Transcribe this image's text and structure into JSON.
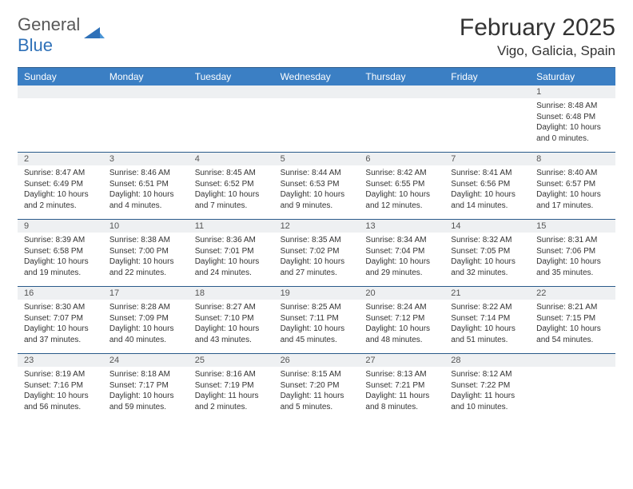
{
  "logo": {
    "word1": "General",
    "word2": "Blue"
  },
  "title": "February 2025",
  "location": "Vigo, Galicia, Spain",
  "colors": {
    "header_bg": "#3b7fc4",
    "header_text": "#ffffff",
    "daynum_bg": "#eef0f2",
    "border": "#2a5a8a",
    "logo_gray": "#585858",
    "logo_blue": "#2f71b8"
  },
  "day_names": [
    "Sunday",
    "Monday",
    "Tuesday",
    "Wednesday",
    "Thursday",
    "Friday",
    "Saturday"
  ],
  "weeks": [
    {
      "nums": [
        "",
        "",
        "",
        "",
        "",
        "",
        "1"
      ],
      "details": [
        "",
        "",
        "",
        "",
        "",
        "",
        "Sunrise: 8:48 AM\nSunset: 6:48 PM\nDaylight: 10 hours and 0 minutes."
      ]
    },
    {
      "nums": [
        "2",
        "3",
        "4",
        "5",
        "6",
        "7",
        "8"
      ],
      "details": [
        "Sunrise: 8:47 AM\nSunset: 6:49 PM\nDaylight: 10 hours and 2 minutes.",
        "Sunrise: 8:46 AM\nSunset: 6:51 PM\nDaylight: 10 hours and 4 minutes.",
        "Sunrise: 8:45 AM\nSunset: 6:52 PM\nDaylight: 10 hours and 7 minutes.",
        "Sunrise: 8:44 AM\nSunset: 6:53 PM\nDaylight: 10 hours and 9 minutes.",
        "Sunrise: 8:42 AM\nSunset: 6:55 PM\nDaylight: 10 hours and 12 minutes.",
        "Sunrise: 8:41 AM\nSunset: 6:56 PM\nDaylight: 10 hours and 14 minutes.",
        "Sunrise: 8:40 AM\nSunset: 6:57 PM\nDaylight: 10 hours and 17 minutes."
      ]
    },
    {
      "nums": [
        "9",
        "10",
        "11",
        "12",
        "13",
        "14",
        "15"
      ],
      "details": [
        "Sunrise: 8:39 AM\nSunset: 6:58 PM\nDaylight: 10 hours and 19 minutes.",
        "Sunrise: 8:38 AM\nSunset: 7:00 PM\nDaylight: 10 hours and 22 minutes.",
        "Sunrise: 8:36 AM\nSunset: 7:01 PM\nDaylight: 10 hours and 24 minutes.",
        "Sunrise: 8:35 AM\nSunset: 7:02 PM\nDaylight: 10 hours and 27 minutes.",
        "Sunrise: 8:34 AM\nSunset: 7:04 PM\nDaylight: 10 hours and 29 minutes.",
        "Sunrise: 8:32 AM\nSunset: 7:05 PM\nDaylight: 10 hours and 32 minutes.",
        "Sunrise: 8:31 AM\nSunset: 7:06 PM\nDaylight: 10 hours and 35 minutes."
      ]
    },
    {
      "nums": [
        "16",
        "17",
        "18",
        "19",
        "20",
        "21",
        "22"
      ],
      "details": [
        "Sunrise: 8:30 AM\nSunset: 7:07 PM\nDaylight: 10 hours and 37 minutes.",
        "Sunrise: 8:28 AM\nSunset: 7:09 PM\nDaylight: 10 hours and 40 minutes.",
        "Sunrise: 8:27 AM\nSunset: 7:10 PM\nDaylight: 10 hours and 43 minutes.",
        "Sunrise: 8:25 AM\nSunset: 7:11 PM\nDaylight: 10 hours and 45 minutes.",
        "Sunrise: 8:24 AM\nSunset: 7:12 PM\nDaylight: 10 hours and 48 minutes.",
        "Sunrise: 8:22 AM\nSunset: 7:14 PM\nDaylight: 10 hours and 51 minutes.",
        "Sunrise: 8:21 AM\nSunset: 7:15 PM\nDaylight: 10 hours and 54 minutes."
      ]
    },
    {
      "nums": [
        "23",
        "24",
        "25",
        "26",
        "27",
        "28",
        ""
      ],
      "details": [
        "Sunrise: 8:19 AM\nSunset: 7:16 PM\nDaylight: 10 hours and 56 minutes.",
        "Sunrise: 8:18 AM\nSunset: 7:17 PM\nDaylight: 10 hours and 59 minutes.",
        "Sunrise: 8:16 AM\nSunset: 7:19 PM\nDaylight: 11 hours and 2 minutes.",
        "Sunrise: 8:15 AM\nSunset: 7:20 PM\nDaylight: 11 hours and 5 minutes.",
        "Sunrise: 8:13 AM\nSunset: 7:21 PM\nDaylight: 11 hours and 8 minutes.",
        "Sunrise: 8:12 AM\nSunset: 7:22 PM\nDaylight: 11 hours and 10 minutes.",
        ""
      ]
    }
  ]
}
